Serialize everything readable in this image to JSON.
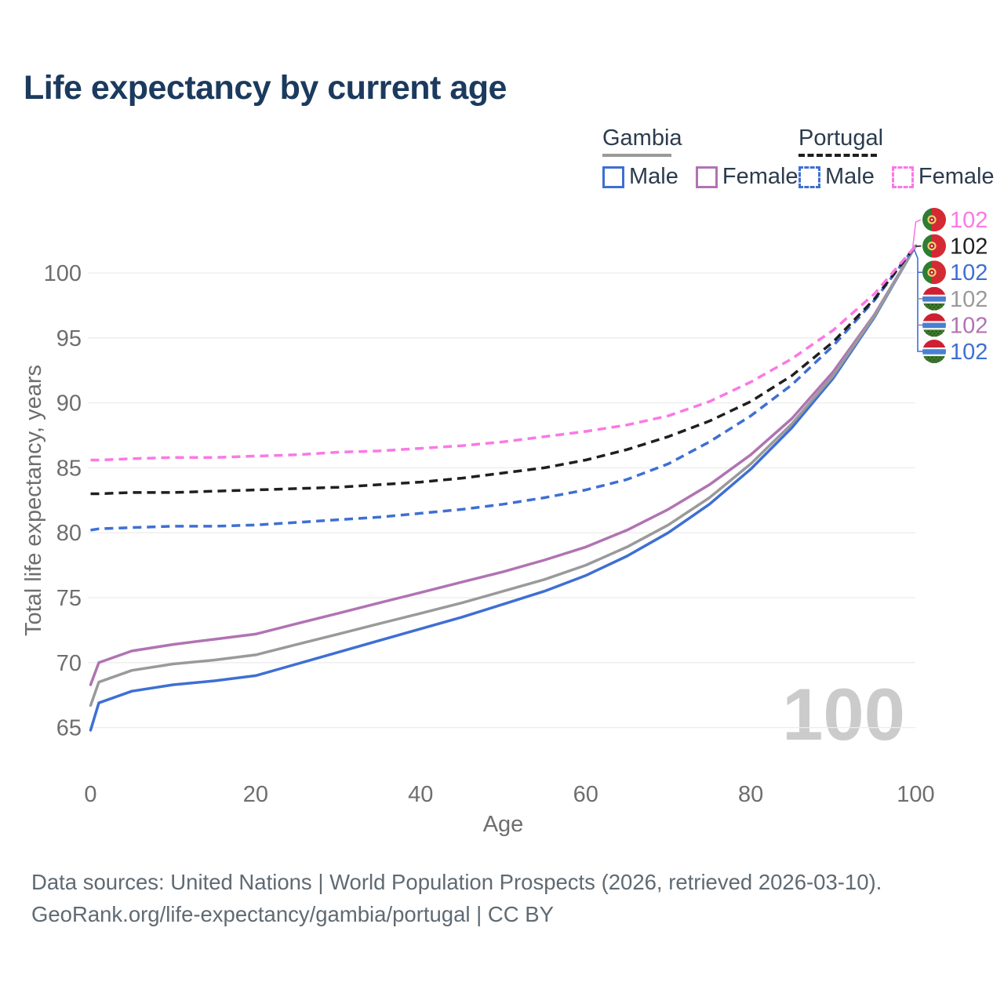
{
  "title": "Life expectancy by current age",
  "watermark_age": "100",
  "legend": {
    "groups": [
      {
        "country": "Gambia",
        "line_style": "solid",
        "header_swatch_color": "#9a9a9a",
        "items": [
          {
            "label": "Male",
            "color": "#3e6fd3"
          },
          {
            "label": "Female",
            "color": "#b173b3"
          }
        ]
      },
      {
        "country": "Portugal",
        "line_style": "dashed",
        "header_swatch_color": "#1f1f1f",
        "items": [
          {
            "label": "Male",
            "color": "#3e6fd3"
          },
          {
            "label": "Female",
            "color": "#fb78e4"
          }
        ]
      }
    ]
  },
  "chart_data": {
    "type": "line",
    "title": "Life expectancy by current age",
    "xlabel": "Age",
    "ylabel": "Total life expectancy, years",
    "xlim": [
      0,
      100
    ],
    "ylim": [
      63,
      103
    ],
    "x_ticks": [
      0,
      20,
      40,
      60,
      80,
      100
    ],
    "y_ticks": [
      65,
      70,
      75,
      80,
      85,
      90,
      95,
      100
    ],
    "grid": "horizontal-only",
    "legend_position": "top-right",
    "x": [
      0,
      1,
      5,
      10,
      15,
      20,
      25,
      30,
      35,
      40,
      45,
      50,
      55,
      60,
      65,
      70,
      75,
      80,
      85,
      90,
      95,
      100
    ],
    "series": [
      {
        "name": "Portugal Female",
        "flag": "portugal",
        "style": "dashed",
        "color": "#fb78e4",
        "end_label": "102",
        "values": [
          85.6,
          85.6,
          85.7,
          85.8,
          85.8,
          85.9,
          86.0,
          86.2,
          86.3,
          86.5,
          86.7,
          87.0,
          87.4,
          87.8,
          88.3,
          89.0,
          90.1,
          91.6,
          93.4,
          95.6,
          98.4,
          102.1
        ]
      },
      {
        "name": "Portugal",
        "flag": "portugal",
        "style": "dashed",
        "color": "#1f1f1f",
        "end_label": "102",
        "values": [
          83.0,
          83.0,
          83.1,
          83.1,
          83.2,
          83.3,
          83.4,
          83.5,
          83.7,
          83.9,
          84.2,
          84.6,
          85.0,
          85.6,
          86.4,
          87.4,
          88.6,
          90.1,
          92.1,
          94.7,
          98.0,
          102.1
        ]
      },
      {
        "name": "Portugal Male",
        "flag": "portugal",
        "style": "dashed",
        "color": "#3e6fd3",
        "end_label": "102",
        "values": [
          80.2,
          80.3,
          80.4,
          80.5,
          80.5,
          80.6,
          80.8,
          81.0,
          81.2,
          81.5,
          81.8,
          82.2,
          82.7,
          83.3,
          84.1,
          85.3,
          87.0,
          89.0,
          91.4,
          94.4,
          97.9,
          102.1
        ]
      },
      {
        "name": "Gambia",
        "flag": "gambia",
        "style": "solid",
        "color": "#9a9a9a",
        "end_label": "102",
        "values": [
          66.7,
          68.5,
          69.4,
          69.9,
          70.2,
          70.6,
          71.4,
          72.2,
          73.0,
          73.8,
          74.6,
          75.5,
          76.4,
          77.5,
          78.9,
          80.6,
          82.7,
          85.3,
          88.4,
          92.1,
          96.7,
          102.1
        ]
      },
      {
        "name": "Gambia Female",
        "flag": "gambia",
        "style": "solid",
        "color": "#b173b3",
        "end_label": "102",
        "values": [
          68.3,
          70.0,
          70.9,
          71.4,
          71.8,
          72.2,
          73.0,
          73.8,
          74.6,
          75.4,
          76.2,
          77.0,
          77.9,
          78.9,
          80.2,
          81.8,
          83.7,
          86.0,
          88.8,
          92.4,
          96.8,
          102.1
        ]
      },
      {
        "name": "Gambia Male",
        "flag": "gambia",
        "style": "solid",
        "color": "#3e6fd3",
        "end_label": "102",
        "values": [
          64.8,
          66.9,
          67.8,
          68.3,
          68.6,
          69.0,
          69.9,
          70.8,
          71.7,
          72.6,
          73.5,
          74.5,
          75.5,
          76.7,
          78.2,
          80.0,
          82.2,
          84.9,
          88.1,
          91.9,
          96.6,
          102.1
        ]
      }
    ]
  },
  "footer": {
    "line1": "Data sources: United Nations | World Population Prospects (2026, retrieved 2026-03-10).",
    "line2": "GeoRank.org/life-expectancy/gambia/portugal | CC BY"
  }
}
